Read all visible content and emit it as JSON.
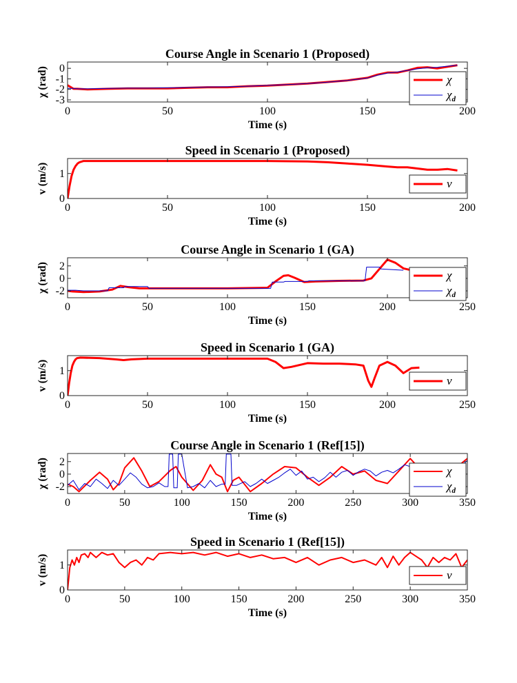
{
  "figure": {
    "background": "#ffffff"
  },
  "chart_data": [
    {
      "type": "line",
      "title": "Course Angle in Scenario 1 (Proposed)",
      "xlabel": "Time (s)",
      "ylabel": "χ (rad)",
      "xlim": [
        0,
        200
      ],
      "ylim": [
        -3.2,
        0.6
      ],
      "xticks": [
        0,
        50,
        100,
        150,
        200
      ],
      "yticks": [
        0,
        -1,
        -2,
        -3
      ],
      "grid": false,
      "legend_position": "bottom-right",
      "series": [
        {
          "name": "χ",
          "label_main": "χ",
          "label_sub": "",
          "color": "#ff0000",
          "width": 3,
          "x": [
            0,
            3,
            5,
            10,
            20,
            30,
            40,
            50,
            60,
            70,
            80,
            90,
            100,
            110,
            120,
            130,
            140,
            150,
            155,
            160,
            165,
            170,
            175,
            180,
            185,
            190,
            195
          ],
          "y": [
            -1.6,
            -1.95,
            -1.95,
            -2.0,
            -1.95,
            -1.9,
            -1.9,
            -1.9,
            -1.85,
            -1.8,
            -1.8,
            -1.7,
            -1.65,
            -1.55,
            -1.45,
            -1.3,
            -1.15,
            -0.9,
            -0.6,
            -0.4,
            -0.4,
            -0.2,
            0.05,
            0.1,
            0.0,
            0.15,
            0.3
          ]
        },
        {
          "name": "χd",
          "label_main": "χ",
          "label_sub": "d",
          "color": "#0000cc",
          "width": 1,
          "x": [
            0,
            3,
            5,
            10,
            20,
            30,
            40,
            50,
            60,
            70,
            80,
            90,
            100,
            110,
            120,
            130,
            140,
            150,
            155,
            160,
            165,
            170,
            175,
            180,
            185,
            190,
            195
          ],
          "y": [
            -1.9,
            -1.9,
            -1.95,
            -1.95,
            -1.9,
            -1.88,
            -1.88,
            -1.85,
            -1.82,
            -1.78,
            -1.75,
            -1.7,
            -1.62,
            -1.55,
            -1.45,
            -1.32,
            -1.15,
            -0.92,
            -0.65,
            -0.45,
            -0.35,
            -0.2,
            -0.05,
            0.05,
            0.1,
            0.2,
            0.3
          ]
        }
      ]
    },
    {
      "type": "line",
      "title": "Speed in Scenario 1 (Proposed)",
      "xlabel": "Time (s)",
      "ylabel": "v (m/s)",
      "xlim": [
        0,
        200
      ],
      "ylim": [
        0,
        1.6
      ],
      "xticks": [
        0,
        50,
        100,
        150,
        200
      ],
      "yticks": [
        0,
        1
      ],
      "grid": false,
      "legend_position": "bottom-right",
      "series": [
        {
          "name": "v",
          "label_main": "v",
          "label_sub": "",
          "color": "#ff0000",
          "width": 3,
          "x": [
            0,
            1,
            2,
            3,
            4,
            5,
            6,
            8,
            10,
            20,
            50,
            80,
            100,
            120,
            130,
            140,
            150,
            160,
            165,
            170,
            175,
            180,
            185,
            190,
            195
          ],
          "y": [
            0,
            0.5,
            0.9,
            1.15,
            1.3,
            1.4,
            1.45,
            1.5,
            1.5,
            1.5,
            1.5,
            1.5,
            1.5,
            1.48,
            1.45,
            1.4,
            1.35,
            1.28,
            1.25,
            1.25,
            1.2,
            1.15,
            1.15,
            1.18,
            1.12
          ]
        }
      ]
    },
    {
      "type": "line",
      "title": "Course Angle in Scenario 1 (GA)",
      "xlabel": "Time (s)",
      "ylabel": "χ (rad)",
      "xlim": [
        0,
        250
      ],
      "ylim": [
        -3.1,
        3.3
      ],
      "xticks": [
        0,
        50,
        100,
        150,
        200,
        250
      ],
      "yticks": [
        2,
        0,
        -2
      ],
      "grid": false,
      "legend_position": "bottom-right",
      "series": [
        {
          "name": "χ",
          "label_main": "χ",
          "label_sub": "",
          "color": "#ff0000",
          "width": 3,
          "x": [
            0,
            3,
            10,
            20,
            28,
            33,
            38,
            45,
            50,
            100,
            125,
            130,
            135,
            138,
            142,
            148,
            155,
            170,
            185,
            190,
            195,
            200,
            205,
            210,
            215,
            220
          ],
          "y": [
            -2.0,
            -2.1,
            -2.2,
            -2.1,
            -1.8,
            -1.2,
            -1.4,
            -1.6,
            -1.6,
            -1.6,
            -1.5,
            -0.5,
            0.4,
            0.5,
            0.1,
            -0.6,
            -0.5,
            -0.4,
            -0.35,
            0.0,
            1.5,
            3.0,
            2.5,
            1.6,
            1.3,
            1.3
          ]
        },
        {
          "name": "χd",
          "label_main": "χ",
          "label_sub": "d",
          "color": "#0000cc",
          "width": 1,
          "x": [
            0,
            5,
            10,
            25,
            26,
            35,
            36,
            50,
            51,
            127,
            128,
            135,
            136,
            150,
            151,
            186,
            187,
            195,
            196,
            210
          ],
          "y": [
            -1.9,
            -1.9,
            -2.0,
            -2.0,
            -1.5,
            -1.5,
            -1.3,
            -1.3,
            -1.6,
            -1.6,
            -0.6,
            -0.6,
            -0.5,
            -0.5,
            -0.4,
            -0.4,
            1.8,
            1.8,
            1.5,
            1.3
          ]
        }
      ]
    },
    {
      "type": "line",
      "title": "Speed in Scenario 1 (GA)",
      "xlabel": "Time (s)",
      "ylabel": "v (m/s)",
      "xlim": [
        0,
        250
      ],
      "ylim": [
        0,
        1.6
      ],
      "xticks": [
        0,
        50,
        100,
        150,
        200,
        250
      ],
      "yticks": [
        0,
        1
      ],
      "grid": false,
      "legend_position": "bottom-right",
      "series": [
        {
          "name": "v",
          "label_main": "v",
          "label_sub": "",
          "color": "#ff0000",
          "width": 3,
          "x": [
            0,
            1,
            2,
            3,
            4,
            5,
            6,
            8,
            20,
            30,
            35,
            40,
            50,
            100,
            125,
            130,
            135,
            140,
            150,
            160,
            170,
            180,
            185,
            188,
            190,
            192,
            195,
            200,
            205,
            210,
            215,
            220
          ],
          "y": [
            0,
            0.5,
            0.9,
            1.2,
            1.35,
            1.45,
            1.5,
            1.52,
            1.5,
            1.45,
            1.42,
            1.45,
            1.48,
            1.48,
            1.48,
            1.35,
            1.1,
            1.15,
            1.3,
            1.28,
            1.28,
            1.25,
            1.2,
            0.6,
            0.35,
            0.7,
            1.2,
            1.35,
            1.2,
            0.9,
            1.1,
            1.12
          ]
        }
      ]
    },
    {
      "type": "line",
      "title": "Course Angle in Scenario 1 (Ref[15])",
      "xlabel": "Time (s)",
      "ylabel": "χ (rad)",
      "xlim": [
        0,
        350
      ],
      "ylim": [
        -3.1,
        3.3
      ],
      "xticks": [
        0,
        50,
        100,
        150,
        200,
        250,
        300,
        350
      ],
      "yticks": [
        2,
        0,
        -2
      ],
      "grid": false,
      "legend_position": "bottom-right",
      "series": [
        {
          "name": "χ",
          "label_main": "χ",
          "label_sub": "",
          "color": "#ff0000",
          "width": 2,
          "x": [
            0,
            5,
            10,
            20,
            28,
            35,
            40,
            45,
            50,
            58,
            65,
            72,
            80,
            90,
            95,
            100,
            110,
            118,
            125,
            130,
            135,
            140,
            145,
            150,
            160,
            170,
            180,
            190,
            200,
            210,
            220,
            230,
            240,
            250,
            260,
            270,
            280,
            290,
            300,
            305,
            310,
            330,
            340,
            350
          ],
          "y": [
            -1.6,
            -2.0,
            -2.8,
            -1.0,
            0.3,
            -0.8,
            -2.5,
            -1.5,
            1.0,
            2.6,
            0.5,
            -2.0,
            -1.2,
            0.6,
            1.2,
            -0.5,
            -2.6,
            -1.0,
            1.5,
            0.0,
            -0.5,
            -2.8,
            -1.0,
            -0.5,
            -2.8,
            -1.5,
            0.0,
            1.2,
            1.0,
            -0.5,
            -1.8,
            -0.5,
            1.2,
            0.0,
            0.5,
            -1.0,
            -1.5,
            0.5,
            2.5,
            1.5,
            -0.5,
            -0.5,
            1.0,
            2.5
          ]
        },
        {
          "name": "χd",
          "label_main": "χ",
          "label_sub": "d",
          "color": "#0000cc",
          "width": 1,
          "x": [
            0,
            5,
            10,
            15,
            20,
            25,
            30,
            35,
            40,
            45,
            50,
            55,
            60,
            65,
            70,
            75,
            80,
            85,
            88,
            89,
            92,
            93,
            96,
            97,
            100,
            105,
            110,
            115,
            120,
            125,
            130,
            135,
            138,
            139,
            143,
            144,
            148,
            155,
            160,
            165,
            170,
            175,
            180,
            185,
            190,
            195,
            200,
            205,
            210,
            215,
            220,
            225,
            230,
            235,
            240,
            245,
            250,
            255,
            260,
            265,
            270,
            275,
            280,
            285,
            290,
            295,
            300,
            305,
            310,
            320,
            330,
            340,
            350
          ],
          "y": [
            -1.8,
            -1.0,
            -2.5,
            -1.5,
            -2.0,
            -0.8,
            -1.5,
            -2.3,
            -1.0,
            -1.8,
            -0.8,
            0.2,
            -0.5,
            -1.6,
            -2.2,
            -2.0,
            -1.4,
            -2.0,
            -2.0,
            3.2,
            3.2,
            -2.2,
            -2.2,
            3.2,
            3.2,
            -2.2,
            -2.0,
            -1.5,
            -2.2,
            -1.0,
            -2.0,
            -1.6,
            -1.6,
            3.2,
            3.2,
            -1.8,
            -1.8,
            -1.2,
            -2.0,
            -1.5,
            -0.8,
            -1.5,
            -1.0,
            -0.5,
            0.2,
            0.8,
            -0.2,
            0.5,
            -0.8,
            -0.5,
            -1.2,
            -0.6,
            0.3,
            -0.5,
            0.3,
            0.6,
            -0.2,
            0.4,
            0.8,
            0.5,
            -0.3,
            0.3,
            0.6,
            0.2,
            0.8,
            1.5,
            1.2,
            -0.3,
            -0.5,
            -0.2,
            -1.0,
            0.5,
            2.2
          ]
        }
      ]
    },
    {
      "type": "line",
      "title": "Speed in Scenario 1 (Ref[15])",
      "xlabel": "Time (s)",
      "ylabel": "v (m/s)",
      "xlim": [
        0,
        350
      ],
      "ylim": [
        0,
        1.6
      ],
      "xticks": [
        0,
        50,
        100,
        150,
        200,
        250,
        300,
        350
      ],
      "yticks": [
        0,
        1
      ],
      "grid": false,
      "legend_position": "bottom-right",
      "series": [
        {
          "name": "v",
          "label_main": "v",
          "label_sub": "",
          "color": "#ff0000",
          "width": 2,
          "x": [
            0,
            2,
            4,
            6,
            8,
            10,
            12,
            15,
            18,
            20,
            25,
            30,
            35,
            40,
            45,
            50,
            55,
            60,
            65,
            70,
            75,
            80,
            90,
            100,
            110,
            120,
            130,
            140,
            150,
            160,
            170,
            180,
            190,
            200,
            210,
            220,
            230,
            240,
            250,
            260,
            270,
            275,
            280,
            285,
            290,
            295,
            300,
            305,
            310,
            315,
            320,
            325,
            330,
            335,
            340,
            345,
            350
          ],
          "y": [
            0,
            0.9,
            1.2,
            1.0,
            1.3,
            1.1,
            1.4,
            1.45,
            1.3,
            1.5,
            1.3,
            1.5,
            1.4,
            1.45,
            1.1,
            0.9,
            1.1,
            1.2,
            1.0,
            1.3,
            1.2,
            1.45,
            1.5,
            1.45,
            1.5,
            1.4,
            1.5,
            1.35,
            1.45,
            1.3,
            1.4,
            1.25,
            1.3,
            1.1,
            1.3,
            1.0,
            1.2,
            1.3,
            1.1,
            1.2,
            1.0,
            1.3,
            0.9,
            1.35,
            1.0,
            1.3,
            1.5,
            1.35,
            1.2,
            0.9,
            1.3,
            1.1,
            1.3,
            1.2,
            1.45,
            0.9,
            1.2
          ]
        }
      ]
    }
  ]
}
